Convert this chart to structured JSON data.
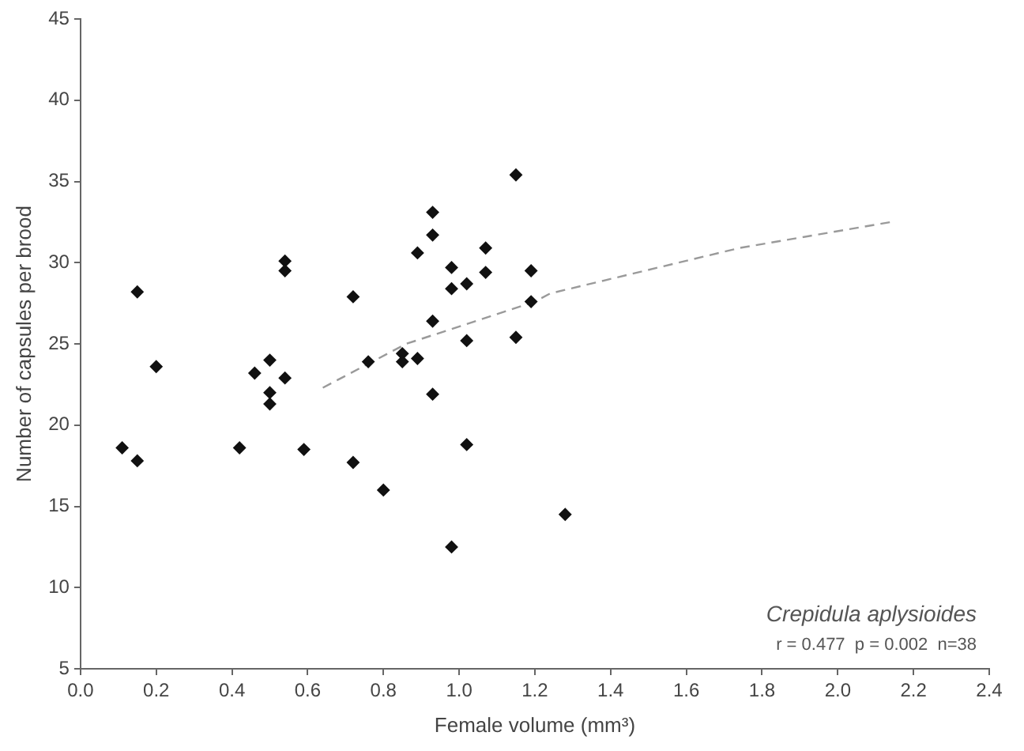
{
  "chart_data": {
    "type": "scatter",
    "xlabel": "Female volume (mm³)",
    "ylabel": "Number of capsules per brood",
    "xlim": [
      0,
      2.4
    ],
    "ylim": [
      5,
      45
    ],
    "xticks": [
      {
        "value": 0,
        "label": "0.0"
      },
      {
        "value": 0.2,
        "label": "0.2"
      },
      {
        "value": 0.4,
        "label": "0.4"
      },
      {
        "value": 0.6,
        "label": "0.6"
      },
      {
        "value": 0.8,
        "label": "0.8"
      },
      {
        "value": 1,
        "label": "1.0"
      },
      {
        "value": 1.2,
        "label": "1.2"
      },
      {
        "value": 1.4,
        "label": "1.4"
      },
      {
        "value": 1.6,
        "label": "1.6"
      },
      {
        "value": 1.8,
        "label": "1.8"
      },
      {
        "value": 2,
        "label": "2.0"
      },
      {
        "value": 2.2,
        "label": "2.2"
      },
      {
        "value": 2.4,
        "label": "2.4"
      }
    ],
    "yticks": [
      5,
      10,
      15,
      20,
      25,
      30,
      35,
      40,
      45
    ],
    "grid": false,
    "legend": false,
    "marker": "diamond",
    "series": [
      {
        "color": "#111111",
        "x": [
          0.11,
          0.15,
          0.15,
          0.2,
          0.42,
          0.46,
          0.5,
          0.5,
          0.5,
          0.54,
          0.54,
          0.54,
          0.59,
          0.72,
          0.72,
          0.76,
          0.8,
          0.85,
          0.85,
          0.89,
          0.89,
          0.93,
          0.93,
          0.93,
          0.93,
          0.98,
          0.98,
          0.98,
          1.02,
          1.02,
          1.02,
          1.07,
          1.07,
          1.15,
          1.15,
          1.19,
          1.19,
          1.28
        ],
        "values": [
          18.6,
          28.2,
          17.8,
          23.6,
          18.6,
          23.2,
          24.0,
          22.0,
          21.3,
          30.1,
          29.5,
          22.9,
          18.5,
          27.9,
          17.7,
          23.9,
          16.0,
          24.4,
          23.9,
          30.6,
          24.1,
          33.1,
          31.7,
          26.4,
          21.9,
          29.7,
          28.4,
          12.5,
          28.7,
          25.2,
          18.8,
          30.9,
          29.4,
          35.4,
          25.4,
          29.5,
          27.6,
          14.5
        ]
      },
      {
        "type": "line",
        "color": "#9a9a9a",
        "line_style": "dashed",
        "marker": "none",
        "x": [
          0.64,
          0.86,
          1.2,
          1.24,
          1.74,
          2.14
        ],
        "values": [
          22.3,
          25.0,
          27.6,
          28.1,
          30.9,
          32.5
        ]
      }
    ],
    "annotations": [
      "Crepidula aplysioides",
      "r = 0.477  p = 0.002  n=38"
    ]
  }
}
